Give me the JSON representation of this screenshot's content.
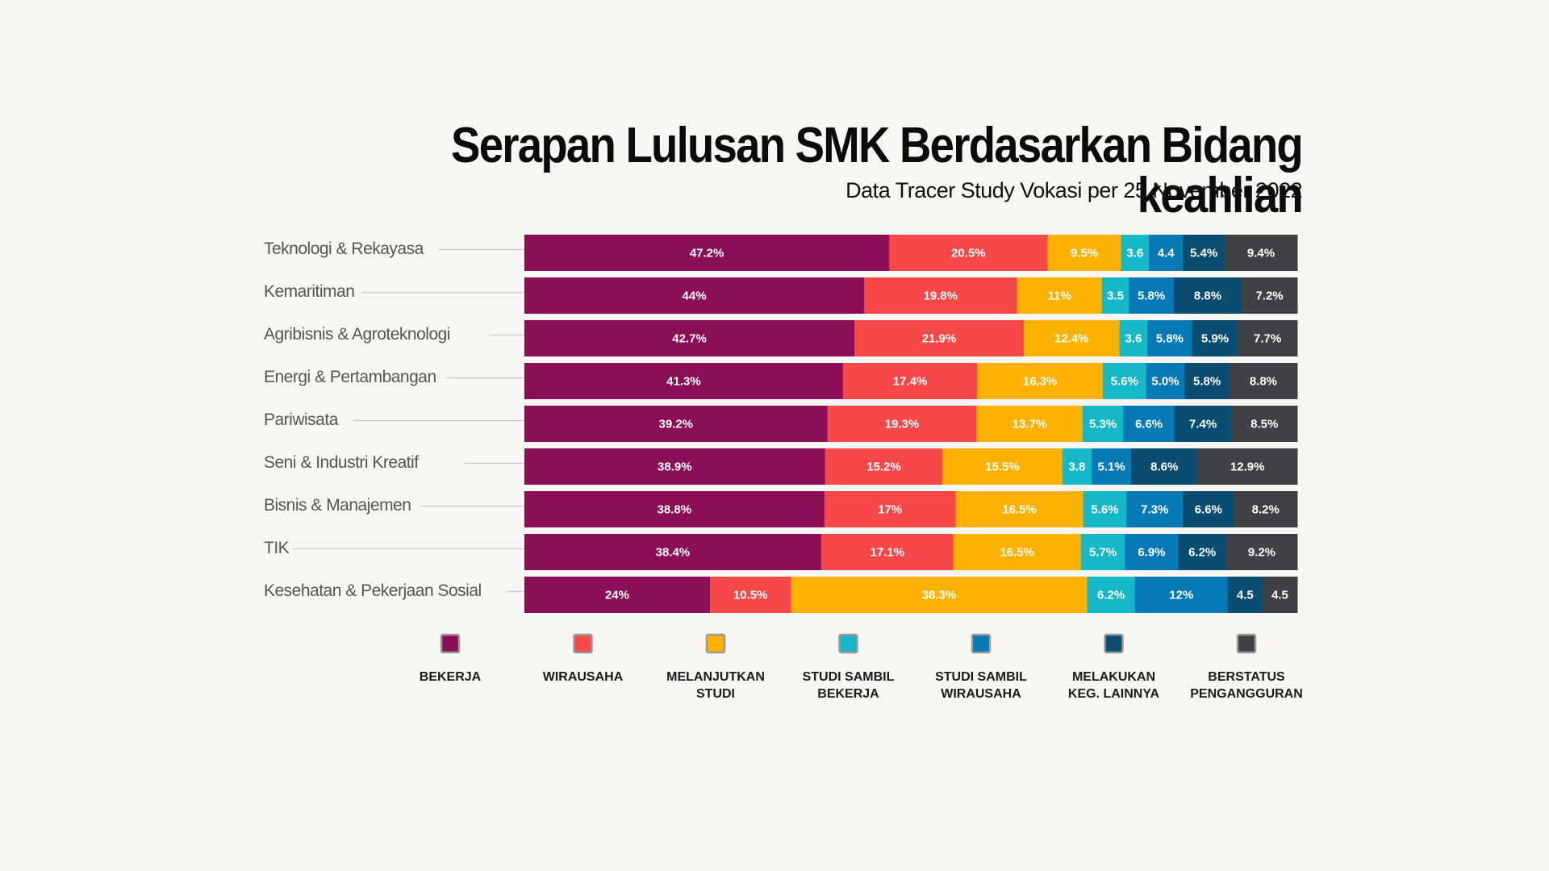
{
  "chart_data": {
    "type": "bar",
    "orientation": "horizontal",
    "stacked": true,
    "normalized": true,
    "title": "Serapan Lulusan SMK Berdasarkan Bidang keahlian",
    "subtitle": "Data Tracer Study Vokasi per 25 November 2022",
    "categories": [
      "Teknologi & Rekayasa",
      "Kemaritiman",
      "Agribisnis & Agroteknologi",
      "Energi & Pertambangan",
      "Pariwisata",
      "Seni & Industri Kreatif",
      "Bisnis & Manajemen",
      "TIK",
      "Kesehatan & Pekerjaan Sosial"
    ],
    "series": [
      {
        "name": "BEKERJA",
        "color": "#8b0f57",
        "values": [
          47.2,
          44,
          42.7,
          41.3,
          39.2,
          38.9,
          38.8,
          38.4,
          24
        ],
        "labels": [
          "47.2%",
          "44%",
          "42.7%",
          "41.3%",
          "39.2%",
          "38.9%",
          "38.8%",
          "38.4%",
          "24%"
        ]
      },
      {
        "name": "WIRAUSAHA",
        "color": "#f64848",
        "values": [
          20.5,
          19.8,
          21.9,
          17.4,
          19.3,
          15.2,
          17,
          17.1,
          10.5
        ],
        "labels": [
          "20.5%",
          "19.8%",
          "21.9%",
          "17.4%",
          "19.3%",
          "15.2%",
          "17%",
          "17.1%",
          "10.5%"
        ]
      },
      {
        "name": "MELANJUTKAN STUDI",
        "color": "#fbb202",
        "values": [
          9.5,
          11,
          12.4,
          16.3,
          13.7,
          15.5,
          16.5,
          16.5,
          38.3
        ],
        "labels": [
          "9.5%",
          "11%",
          "12.4%",
          "16.3%",
          "13.7%",
          "15.5%",
          "16.5%",
          "16.5%",
          "38.3%"
        ]
      },
      {
        "name": "STUDI SAMBIL BEKERJA",
        "color": "#16b8c8",
        "values": [
          3.6,
          3.5,
          3.6,
          5.6,
          5.3,
          3.8,
          5.6,
          5.7,
          6.2
        ],
        "labels": [
          "3.6",
          "3.5",
          "3.6",
          "5.6%",
          "5.3%",
          "3.8",
          "5.6%",
          "5.7%",
          "6.2%"
        ]
      },
      {
        "name": "STUDI SAMBIL WIRAUSAHA",
        "color": "#0779b5",
        "values": [
          4.4,
          5.8,
          5.8,
          5.0,
          6.6,
          5.1,
          7.3,
          6.9,
          12
        ],
        "labels": [
          "4.4",
          "5.8%",
          "5.8%",
          "5.0%",
          "6.6%",
          "5.1%",
          "7.3%",
          "6.9%",
          "12%"
        ]
      },
      {
        "name": "MELAKUKAN KEG. LAINNYA",
        "color": "#0b4d72",
        "values": [
          5.4,
          8.8,
          5.9,
          5.8,
          7.4,
          8.6,
          6.6,
          6.2,
          4.5
        ],
        "labels": [
          "5.4%",
          "8.8%",
          "5.9%",
          "5.8%",
          "7.4%",
          "8.6%",
          "6.6%",
          "6.2%",
          "4.5"
        ]
      },
      {
        "name": "BERSTATUS PENGANGGURAN",
        "color": "#404144",
        "values": [
          9.4,
          7.2,
          7.7,
          8.8,
          8.5,
          12.9,
          8.2,
          9.2,
          4.5
        ],
        "labels": [
          "9.4%",
          "7.2%",
          "7.7%",
          "8.8%",
          "8.5%",
          "12.9%",
          "8.2%",
          "9.2%",
          "4.5"
        ]
      }
    ],
    "legend": {
      "placement": "bottom",
      "entries": [
        [
          "BEKERJA"
        ],
        [
          "WIRAUSAHA"
        ],
        [
          "MELANJUTKAN",
          "STUDI"
        ],
        [
          "STUDI SAMBIL",
          "BEKERJA"
        ],
        [
          "STUDI SAMBIL",
          "WIRAUSAHA"
        ],
        [
          "MELAKUKAN",
          "KEG. LAINNYA"
        ],
        [
          "BERSTATUS",
          "PENGANGGURAN"
        ]
      ]
    },
    "grid": false
  }
}
